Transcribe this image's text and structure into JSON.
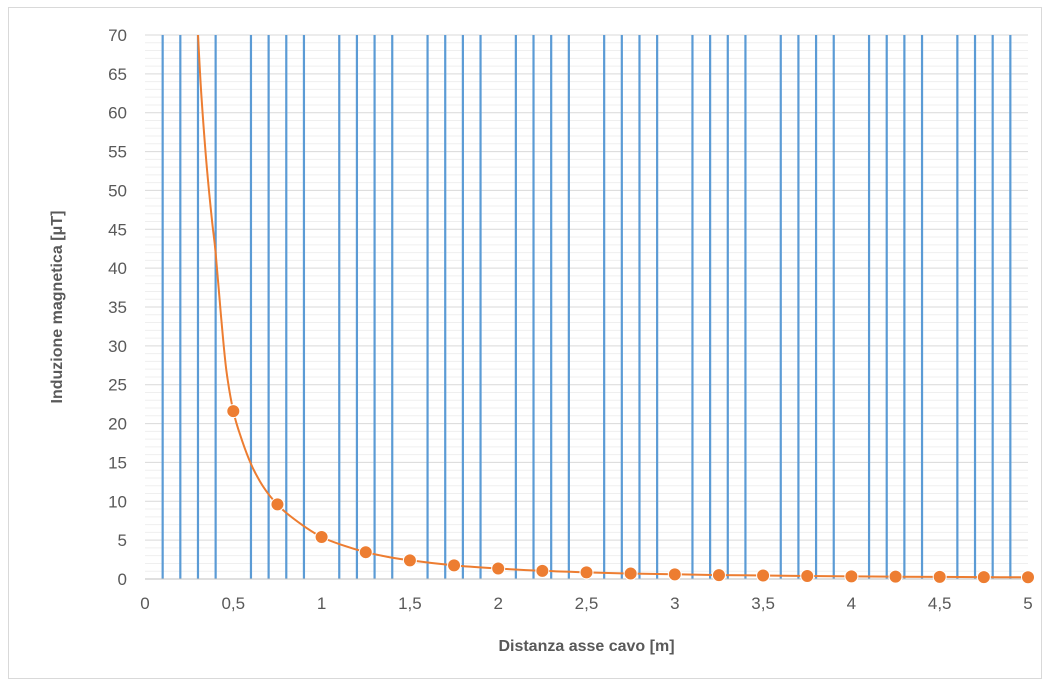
{
  "chart_data": {
    "type": "scatter",
    "xlabel": "Distanza asse cavo [m]",
    "ylabel": "Induzione magnetica [μT]",
    "xlim": [
      0,
      5
    ],
    "ylim": [
      0,
      70
    ],
    "x_ticks": [
      0,
      0.5,
      1,
      1.5,
      2,
      2.5,
      3,
      3.5,
      4,
      4.5,
      5
    ],
    "x_tick_labels": [
      "0",
      "0,5",
      "1",
      "1,5",
      "2",
      "2,5",
      "3",
      "3,5",
      "4",
      "4,5",
      "5"
    ],
    "y_ticks": [
      0,
      5,
      10,
      15,
      20,
      25,
      30,
      35,
      40,
      45,
      50,
      55,
      60,
      65,
      70
    ],
    "y_tick_labels": [
      "0",
      "5",
      "10",
      "15",
      "20",
      "25",
      "30",
      "35",
      "40",
      "45",
      "50",
      "55",
      "60",
      "65",
      "70"
    ],
    "vertical_gridlines_x": [
      0.1,
      0.2,
      0.3,
      0.4,
      0.6,
      0.7,
      0.8,
      0.9,
      1.1,
      1.2,
      1.3,
      1.4,
      1.6,
      1.7,
      1.8,
      1.9,
      2.1,
      2.2,
      2.3,
      2.4,
      2.6,
      2.7,
      2.8,
      2.9,
      3.1,
      3.2,
      3.3,
      3.4,
      3.6,
      3.7,
      3.8,
      3.9,
      4.1,
      4.2,
      4.3,
      4.4,
      4.6,
      4.7,
      4.8,
      4.9
    ],
    "series": [
      {
        "x": [
          0.5,
          0.75,
          1,
          1.25,
          1.5,
          1.75,
          2,
          2.25,
          2.5,
          2.75,
          3,
          3.25,
          3.5,
          3.75,
          4,
          4.25,
          4.5,
          4.75,
          5
        ],
        "values": [
          21.6,
          9.6,
          5.4,
          3.45,
          2.4,
          1.75,
          1.35,
          1.05,
          0.85,
          0.7,
          0.6,
          0.5,
          0.45,
          0.38,
          0.34,
          0.3,
          0.27,
          0.24,
          0.22
        ],
        "color": "#ed7d31"
      }
    ],
    "curve": {
      "x": [
        0.3,
        0.32,
        0.35,
        0.38,
        0.4,
        0.43,
        0.46,
        0.5,
        0.55,
        0.6,
        0.65,
        0.7,
        0.75,
        0.8,
        0.9,
        1,
        1.125,
        1.25,
        1.375,
        1.5,
        1.75,
        2,
        2.25,
        2.5,
        2.75,
        3,
        3.25,
        3.5,
        3.75,
        4,
        4.25,
        4.5,
        4.75,
        5
      ],
      "y": [
        70,
        62,
        53,
        46,
        42,
        34,
        27,
        21.6,
        17.8,
        14.8,
        12.6,
        10.9,
        9.6,
        8.5,
        6.8,
        5.4,
        4.3,
        3.45,
        2.85,
        2.4,
        1.75,
        1.35,
        1.05,
        0.85,
        0.7,
        0.6,
        0.5,
        0.45,
        0.38,
        0.34,
        0.3,
        0.27,
        0.24,
        0.22
      ],
      "color": "#ed7d31"
    },
    "grid_color": "#5b9bd5",
    "horizontal_grid_color": "#d9d9d9",
    "grid": true,
    "legend": "none"
  }
}
